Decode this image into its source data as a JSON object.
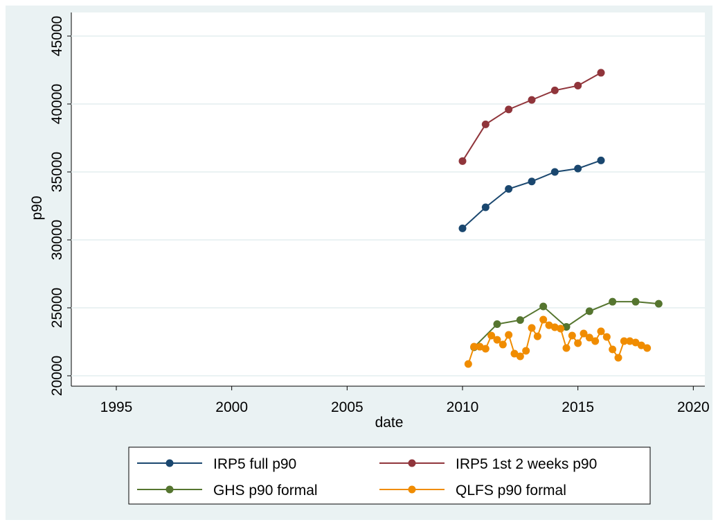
{
  "chart_data": {
    "type": "line",
    "x_label": "date",
    "y_label": "p90",
    "xlim": [
      1993.05,
      2020.5
    ],
    "xticks": [
      1995,
      2000,
      2005,
      2010,
      2015,
      2020
    ],
    "ylim": [
      19235,
      46735
    ],
    "yticks": [
      20000,
      25000,
      30000,
      35000,
      40000,
      45000
    ],
    "grid": true,
    "legend_position": "bottom",
    "series": [
      {
        "name": "IRP5 full p90",
        "color": "#1a476f",
        "x": [
          2010,
          2011,
          2012,
          2013,
          2014,
          2015,
          2016
        ],
        "values": [
          30850,
          32400,
          33750,
          34300,
          35000,
          35250,
          35850
        ]
      },
      {
        "name": "IRP5 1st 2 weeks p90",
        "color": "#90353b",
        "x": [
          2010,
          2011,
          2012,
          2013,
          2014,
          2015,
          2016
        ],
        "values": [
          35800,
          38500,
          39600,
          40300,
          41000,
          41350,
          42300
        ]
      },
      {
        "name": "GHS p90 formal",
        "color": "#55752f",
        "x": [
          2010.5,
          2011.5,
          2012.5,
          2013.5,
          2014.5,
          2015.5,
          2016.5,
          2017.5,
          2018.5
        ],
        "values": [
          22100,
          23800,
          24100,
          25100,
          23600,
          24750,
          25450,
          25450,
          25300
        ]
      },
      {
        "name": "QLFS p90 formal",
        "color": "#f08c00",
        "x": [
          2010.25,
          2010.5,
          2010.75,
          2011,
          2011.25,
          2011.5,
          2011.75,
          2012,
          2012.25,
          2012.5,
          2012.75,
          2013,
          2013.25,
          2013.5,
          2013.75,
          2014,
          2014.25,
          2014.5,
          2014.75,
          2015,
          2015.25,
          2015.5,
          2015.75,
          2016,
          2016.25,
          2016.5,
          2016.75,
          2017,
          2017.25,
          2017.5,
          2017.75,
          2018
        ],
        "values": [
          20870,
          22140,
          22140,
          21990,
          22960,
          22650,
          22300,
          23010,
          21630,
          21430,
          21840,
          23520,
          22900,
          24130,
          23720,
          23570,
          23470,
          22040,
          22960,
          22400,
          23110,
          22810,
          22550,
          23270,
          22860,
          21940,
          21330,
          22550,
          22550,
          22450,
          22240,
          22040
        ]
      }
    ]
  }
}
